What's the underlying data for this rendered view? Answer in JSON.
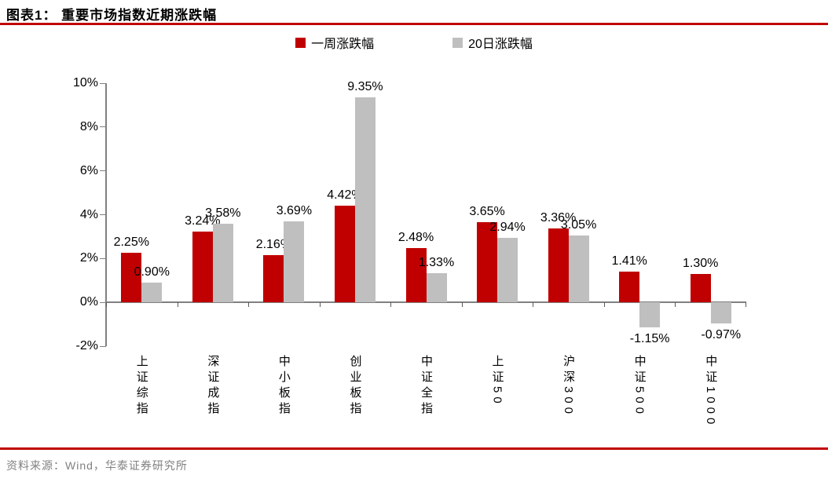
{
  "header": {
    "title": "图表1：  重要市场指数近期涨跌幅"
  },
  "legend": {
    "items": [
      {
        "label": "一周涨跌幅",
        "color": "#C00000"
      },
      {
        "label": "20日涨跌幅",
        "color": "#BFBFBF"
      }
    ]
  },
  "footer": {
    "source": "资料来源：Wind，华泰证券研究所"
  },
  "colors": {
    "accent_red": "#C00000",
    "bar_week": "#C00000",
    "bar_20day": "#BFBFBF",
    "axis_line": "#808080",
    "tick_mark": "#595959",
    "footer_text": "#808080"
  },
  "chart_data": {
    "type": "bar",
    "title": "重要市场指数近期涨跌幅",
    "categories": [
      "上证综指",
      "深证成指",
      "中小板指",
      "创业板指",
      "中证全指",
      "上证50",
      "沪深300",
      "中证500",
      "中证1000"
    ],
    "series": [
      {
        "name": "一周涨跌幅",
        "color": "#C00000",
        "values": [
          2.25,
          3.24,
          2.16,
          4.42,
          2.48,
          3.65,
          3.36,
          1.41,
          1.3
        ]
      },
      {
        "name": "20日涨跌幅",
        "color": "#BFBFBF",
        "values": [
          0.9,
          3.58,
          3.69,
          9.35,
          1.33,
          2.94,
          3.05,
          -1.15,
          -0.97
        ]
      }
    ],
    "value_label_format": "0.00%",
    "ylim": [
      -2,
      10
    ],
    "ytick_step": 2,
    "ytick_labels": [
      "10%",
      "8%",
      "6%",
      "4%",
      "2%",
      "0%",
      "-2%"
    ],
    "grid": false,
    "legend_position": "top",
    "xlabel": "",
    "ylabel": ""
  }
}
